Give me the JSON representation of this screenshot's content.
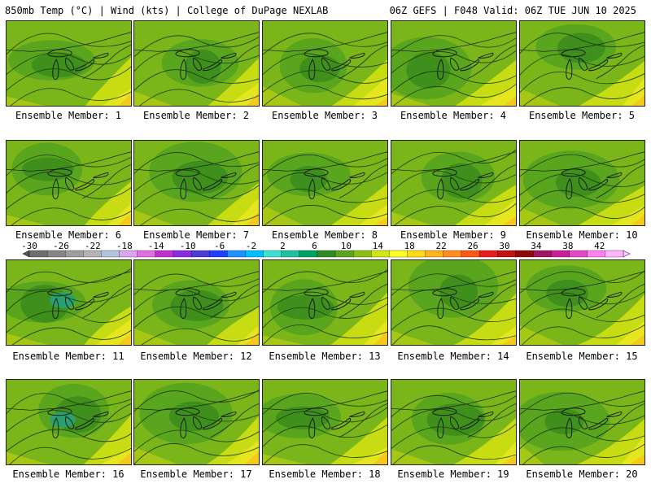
{
  "header": {
    "left": "850mb Temp (°C) | Wind (kts) | College of DuPage NEXLAB",
    "right": "06Z GEFS | F048 Valid: 06Z TUE JUN 10 2025"
  },
  "panels": [
    {
      "label": "Ensemble Member: 1"
    },
    {
      "label": "Ensemble Member: 2"
    },
    {
      "label": "Ensemble Member: 3"
    },
    {
      "label": "Ensemble Member: 4"
    },
    {
      "label": "Ensemble Member: 5"
    },
    {
      "label": "Ensemble Member: 6"
    },
    {
      "label": "Ensemble Member: 7"
    },
    {
      "label": "Ensemble Member: 8"
    },
    {
      "label": "Ensemble Member: 9"
    },
    {
      "label": "Ensemble Member: 10"
    },
    {
      "label": "Ensemble Member: 11"
    },
    {
      "label": "Ensemble Member: 12"
    },
    {
      "label": "Ensemble Member: 13"
    },
    {
      "label": "Ensemble Member: 14"
    },
    {
      "label": "Ensemble Member: 15"
    },
    {
      "label": "Ensemble Member: 16"
    },
    {
      "label": "Ensemble Member: 17"
    },
    {
      "label": "Ensemble Member: 18"
    },
    {
      "label": "Ensemble Member: 19"
    },
    {
      "label": "Ensemble Member: 20"
    }
  ],
  "colorbar": {
    "ticks": [
      "-30",
      "-26",
      "-22",
      "-18",
      "-14",
      "-10",
      "-6",
      "-2",
      "2",
      "6",
      "10",
      "14",
      "18",
      "22",
      "26",
      "30",
      "34",
      "38",
      "42"
    ],
    "colors": [
      "#6e6e6e",
      "#868686",
      "#9e9e9e",
      "#b4b4b4",
      "#b0c4de",
      "#d9a6f0",
      "#e070e0",
      "#c030d0",
      "#8a2be2",
      "#4b3cd0",
      "#1e40ff",
      "#1e90ff",
      "#00bfff",
      "#40e0d0",
      "#20c0a0",
      "#00a060",
      "#2e8b22",
      "#5aa51e",
      "#8cbe14",
      "#d2e614",
      "#ffff28",
      "#ffdc14",
      "#ffb41e",
      "#ff8c1e",
      "#ff5a14",
      "#e61e1e",
      "#be1414",
      "#8c0a0a",
      "#a01464",
      "#c81e96",
      "#e646c8",
      "#ff82f0",
      "#ffb4ff"
    ]
  }
}
